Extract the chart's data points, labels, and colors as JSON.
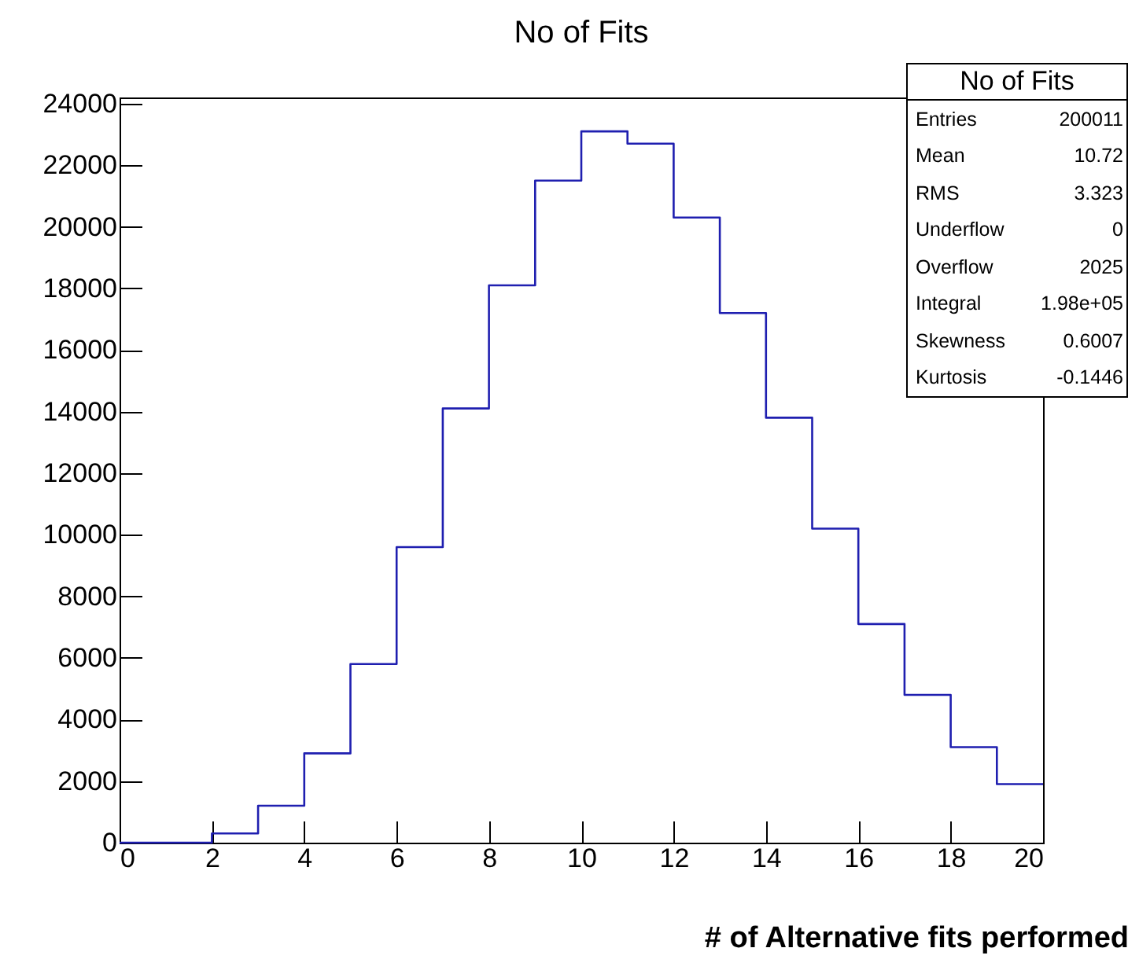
{
  "chart_data": {
    "type": "histogram",
    "title": "No of Fits",
    "xlabel": "# of Alternative fits performed",
    "bins": [
      0,
      1,
      2,
      3,
      4,
      5,
      6,
      7,
      8,
      9,
      10,
      11,
      12,
      13,
      14,
      15,
      16,
      17,
      18,
      19,
      20
    ],
    "values": [
      0,
      0,
      300,
      1200,
      2900,
      5800,
      9600,
      14100,
      18100,
      21500,
      23100,
      22700,
      20300,
      17200,
      13800,
      10200,
      7100,
      4800,
      3100,
      1900
    ],
    "color": "#1f1fb0",
    "xlim": [
      0,
      20
    ],
    "xticks": [
      0,
      2,
      4,
      6,
      8,
      10,
      12,
      14,
      16,
      18,
      20
    ],
    "ylim": [
      0,
      24200
    ],
    "yticks": [
      0,
      2000,
      4000,
      6000,
      8000,
      10000,
      12000,
      14000,
      16000,
      18000,
      20000,
      22000,
      24000
    ],
    "annotations": [
      "No of Fits",
      "Entries",
      "200011",
      "Mean",
      "10.72",
      "RMS",
      "3.323",
      "Underflow",
      "0",
      "Overflow",
      "2025",
      "Integral",
      "1.98e+05",
      "Skewness",
      "0.6007",
      "Kurtosis",
      "-0.1446"
    ]
  }
}
